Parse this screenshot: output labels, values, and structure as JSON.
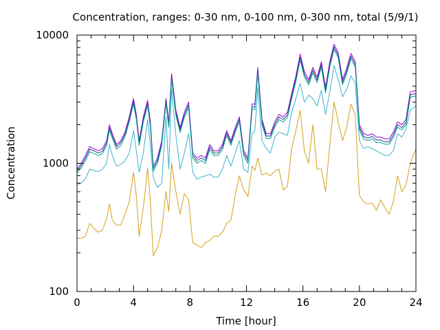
{
  "chart_data": {
    "type": "line",
    "title": "Concentration, ranges: 0-30 nm, 0-100 nm, 0-300 nm, total (5/9/1)",
    "xlabel": "Time [hour]",
    "ylabel": "Concentration",
    "xlim": [
      0,
      24
    ],
    "ylim": [
      100,
      10000
    ],
    "yscale": "log",
    "grid": false,
    "legend": "none",
    "x_ticks": [
      "0",
      "4",
      "8",
      "12",
      "16",
      "20",
      "24"
    ],
    "y_ticks": [
      "100",
      "1000",
      "10000"
    ],
    "x": [
      0,
      0.3,
      0.6,
      0.9,
      1.2,
      1.5,
      1.8,
      2.1,
      2.3,
      2.5,
      2.8,
      3.1,
      3.4,
      3.7,
      4.0,
      4.2,
      4.4,
      4.7,
      5.0,
      5.2,
      5.4,
      5.7,
      6.0,
      6.3,
      6.5,
      6.7,
      7.0,
      7.3,
      7.6,
      7.9,
      8.2,
      8.5,
      8.8,
      9.1,
      9.4,
      9.7,
      10.0,
      10.3,
      10.6,
      10.9,
      11.2,
      11.5,
      11.8,
      12.1,
      12.4,
      12.6,
      12.8,
      13.1,
      13.4,
      13.7,
      14.0,
      14.3,
      14.6,
      14.9,
      15.2,
      15.5,
      15.8,
      16.1,
      16.4,
      16.7,
      17.0,
      17.3,
      17.6,
      17.9,
      18.2,
      18.5,
      18.8,
      19.1,
      19.4,
      19.7,
      20.0,
      20.3,
      20.6,
      20.9,
      21.2,
      21.5,
      21.8,
      22.1,
      22.4,
      22.7,
      23.0,
      23.3,
      23.6,
      24.0
    ],
    "series": [
      {
        "color": "#9400d3",
        "values": [
          900,
          1000,
          1150,
          1350,
          1300,
          1250,
          1300,
          1500,
          2000,
          1700,
          1400,
          1500,
          1750,
          2300,
          3200,
          2400,
          1500,
          2300,
          3100,
          2100,
          950,
          1100,
          1500,
          3200,
          2100,
          5000,
          2600,
          1900,
          2500,
          3000,
          1200,
          1100,
          1150,
          1100,
          1400,
          1250,
          1250,
          1400,
          1800,
          1500,
          1900,
          2300,
          1250,
          1100,
          2900,
          2900,
          5600,
          2200,
          1700,
          1700,
          2100,
          2400,
          2300,
          2500,
          3500,
          4800,
          7100,
          5200,
          4500,
          5600,
          4700,
          6200,
          3900,
          6200,
          8500,
          7300,
          4500,
          5500,
          7200,
          6200,
          2000,
          1700,
          1650,
          1700,
          1600,
          1600,
          1550,
          1550,
          1750,
          2100,
          2000,
          2200,
          3600,
          3700
        ]
      },
      {
        "color": "#1e3f8a",
        "values": [
          870,
          960,
          1100,
          1290,
          1250,
          1200,
          1240,
          1440,
          1900,
          1630,
          1350,
          1450,
          1680,
          2200,
          3050,
          2300,
          1440,
          2200,
          2950,
          2000,
          910,
          1050,
          1440,
          3050,
          2000,
          4750,
          2480,
          1820,
          2380,
          2850,
          1150,
          1050,
          1100,
          1050,
          1340,
          1200,
          1200,
          1340,
          1720,
          1440,
          1820,
          2200,
          1200,
          1050,
          2750,
          2750,
          5300,
          2100,
          1630,
          1630,
          2000,
          2290,
          2200,
          2380,
          3330,
          4560,
          6700,
          4940,
          4280,
          5320,
          4460,
          5900,
          3700,
          5900,
          8100,
          6950,
          4280,
          5230,
          6850,
          5900,
          1900,
          1620,
          1570,
          1620,
          1520,
          1520,
          1470,
          1470,
          1660,
          2000,
          1900,
          2090,
          3420,
          3500
        ]
      },
      {
        "color": "#00a08a",
        "values": [
          840,
          920,
          1050,
          1230,
          1190,
          1150,
          1190,
          1380,
          1820,
          1560,
          1290,
          1380,
          1610,
          2100,
          2900,
          2200,
          1380,
          2100,
          2820,
          1910,
          870,
          1000,
          1380,
          2920,
          1910,
          4550,
          2370,
          1740,
          2280,
          2720,
          1100,
          1000,
          1050,
          1000,
          1280,
          1150,
          1150,
          1280,
          1650,
          1380,
          1740,
          2100,
          1150,
          1000,
          2630,
          2630,
          5050,
          2000,
          1560,
          1560,
          1910,
          2190,
          2100,
          2280,
          3180,
          4350,
          6400,
          4720,
          4090,
          5080,
          4260,
          5640,
          3540,
          5640,
          7750,
          6640,
          4090,
          5000,
          6550,
          5640,
          1820,
          1550,
          1500,
          1550,
          1450,
          1450,
          1410,
          1410,
          1590,
          1910,
          1820,
          2000,
          3270,
          3350
        ]
      },
      {
        "color": "#3cb0d0",
        "values": [
          680,
          700,
          760,
          900,
          880,
          860,
          900,
          1000,
          1400,
          1150,
          950,
          980,
          1050,
          1200,
          1800,
          1250,
          850,
          1200,
          2200,
          1350,
          780,
          650,
          700,
          2300,
          900,
          3800,
          1650,
          900,
          1200,
          1700,
          850,
          750,
          780,
          800,
          820,
          780,
          780,
          900,
          1150,
          950,
          1200,
          1500,
          900,
          850,
          1700,
          1800,
          3900,
          1500,
          1300,
          1200,
          1600,
          1750,
          1700,
          1650,
          2500,
          3200,
          4200,
          3000,
          3400,
          3200,
          2800,
          3700,
          2400,
          3600,
          5800,
          4500,
          3300,
          3800,
          4800,
          4200,
          1500,
          1300,
          1350,
          1300,
          1250,
          1200,
          1150,
          1150,
          1250,
          1700,
          1600,
          1850,
          2600,
          2800
        ]
      },
      {
        "color": "#d4a017",
        "values": [
          260,
          260,
          270,
          340,
          310,
          290,
          300,
          370,
          480,
          360,
          330,
          330,
          400,
          500,
          850,
          560,
          270,
          450,
          920,
          500,
          190,
          220,
          300,
          600,
          420,
          1000,
          600,
          400,
          580,
          520,
          240,
          230,
          220,
          240,
          250,
          270,
          270,
          290,
          340,
          360,
          560,
          800,
          620,
          550,
          950,
          880,
          1100,
          810,
          840,
          800,
          870,
          900,
          620,
          660,
          1300,
          1800,
          2600,
          1250,
          1000,
          2000,
          900,
          900,
          600,
          1400,
          3000,
          2100,
          1500,
          1900,
          2900,
          2400,
          560,
          500,
          480,
          490,
          430,
          520,
          450,
          400,
          500,
          800,
          600,
          680,
          1000,
          1300
        ]
      }
    ]
  }
}
